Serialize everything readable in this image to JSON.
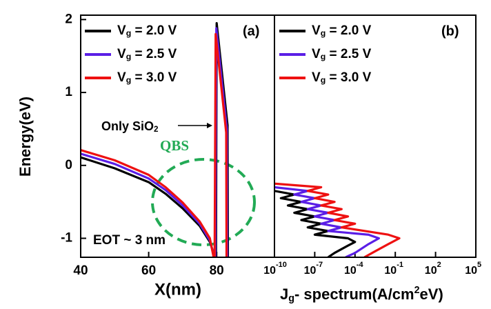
{
  "chart_data": [
    {
      "type": "line",
      "ylabel": "Energy(eV)",
      "xlabel": "X(nm)",
      "panel_label": "(a)",
      "annotations": [
        "Only SiO2",
        "QBS",
        "EOT ~ 3 nm"
      ],
      "xlim": [
        40,
        97
      ],
      "xticks": [
        40,
        60,
        80
      ],
      "ylim": [
        -1.26,
        2.06
      ],
      "yticks": [
        2,
        1,
        0,
        -1
      ],
      "legend": "upper left",
      "series": [
        {
          "name": "Vg = 2.0 V",
          "color": "#000000",
          "x": [
            40,
            50,
            60,
            65,
            70,
            75,
            78,
            79.5,
            79.8,
            80.0,
            83.2,
            83.3
          ],
          "values": [
            0.11,
            -0.04,
            -0.23,
            -0.39,
            -0.59,
            -0.83,
            -1.05,
            -1.26,
            -1.26,
            1.95,
            0.55,
            -1.26
          ]
        },
        {
          "name": "Vg = 2.5 V",
          "color": "#5a1ee6",
          "x": [
            40,
            50,
            60,
            65,
            70,
            75,
            78,
            79.3,
            79.6,
            79.9,
            83.0,
            83.1
          ],
          "values": [
            0.16,
            0.02,
            -0.18,
            -0.34,
            -0.55,
            -0.8,
            -1.03,
            -1.26,
            -1.26,
            1.88,
            0.5,
            -1.26
          ]
        },
        {
          "name": "Vg = 3.0 V",
          "color": "#ee1111",
          "x": [
            40,
            50,
            60,
            65,
            70,
            75,
            78,
            79.1,
            79.4,
            79.7,
            82.8,
            82.9
          ],
          "values": [
            0.21,
            0.07,
            -0.13,
            -0.3,
            -0.51,
            -0.77,
            -1.0,
            -1.26,
            -1.26,
            1.8,
            0.45,
            -1.26
          ]
        }
      ]
    },
    {
      "type": "line",
      "xlabel": "Jg- spectrum(A/cm2eV)",
      "panel_label": "(b)",
      "xscale": "log",
      "xlim": [
        1e-10,
        100000.0
      ],
      "ylim": [
        -1.26,
        2.06
      ],
      "xticks": [
        {
          "value": 1e-10,
          "label": "10",
          "exponent": "-10"
        },
        {
          "value": 1e-07,
          "label": "10",
          "exponent": "-7"
        },
        {
          "value": 0.0001,
          "label": "10",
          "exponent": "-4"
        },
        {
          "value": 0.1,
          "label": "10",
          "exponent": "-1"
        },
        {
          "value": 100,
          "label": "10",
          "exponent": "2"
        },
        {
          "value": 100000,
          "label": "10",
          "exponent": "5"
        }
      ],
      "legend": "upper left",
      "series": [
        {
          "name": "Vg = 2.0 V",
          "color": "#000000",
          "x": [
            1e-10,
            3e-09,
            3e-10,
            1e-08,
            1e-09,
            3e-08,
            3e-09,
            1e-07,
            1e-08,
            3e-07,
            3e-08,
            1e-06,
            1e-07,
            3e-05,
            0.0001,
            3e-05,
            3e-06,
            1e-06
          ],
          "values": [
            -0.35,
            -0.4,
            -0.45,
            -0.5,
            -0.55,
            -0.6,
            -0.65,
            -0.7,
            -0.75,
            -0.8,
            -0.85,
            -0.9,
            -0.95,
            -1.0,
            -1.05,
            -1.1,
            -1.2,
            -1.26
          ]
        },
        {
          "name": "Vg = 2.5 V",
          "color": "#5a1ee6",
          "x": [
            1e-10,
            3e-08,
            3e-09,
            1e-07,
            1e-08,
            3e-07,
            3e-08,
            1e-06,
            1e-07,
            3e-06,
            3e-07,
            1e-05,
            1e-06,
            0.001,
            0.006,
            0.001,
            0.0001,
            2e-05
          ],
          "values": [
            -0.3,
            -0.35,
            -0.4,
            -0.45,
            -0.5,
            -0.55,
            -0.6,
            -0.65,
            -0.7,
            -0.75,
            -0.8,
            -0.85,
            -0.9,
            -0.95,
            -1.0,
            -1.08,
            -1.2,
            -1.26
          ]
        },
        {
          "name": "Vg = 3.0 V",
          "color": "#ee1111",
          "x": [
            1e-10,
            3e-07,
            3e-08,
            1e-06,
            1e-07,
            3e-06,
            3e-07,
            1e-05,
            1e-06,
            3e-05,
            3e-06,
            0.0001,
            1e-05,
            0.03,
            0.2,
            0.03,
            0.003,
            0.0005
          ],
          "values": [
            -0.25,
            -0.3,
            -0.35,
            -0.4,
            -0.45,
            -0.5,
            -0.55,
            -0.6,
            -0.65,
            -0.7,
            -0.75,
            -0.8,
            -0.85,
            -0.95,
            -1.0,
            -1.08,
            -1.18,
            -1.26
          ]
        }
      ]
    }
  ]
}
